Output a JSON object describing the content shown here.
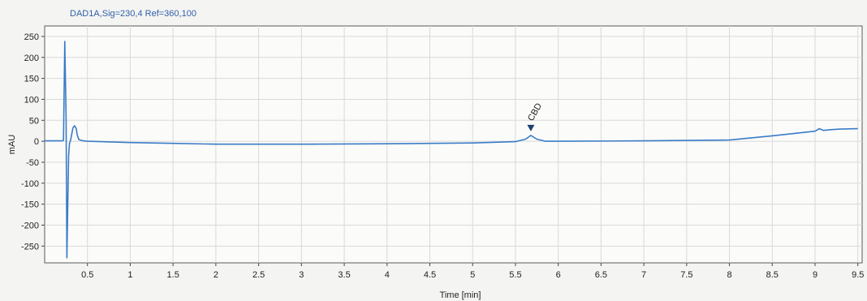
{
  "chart_data": {
    "type": "line",
    "signal_label": "DAD1A,Sig=230,4  Ref=360,100",
    "xlabel": "Time [min]",
    "ylabel": "mAU",
    "xlim": [
      0,
      9.55
    ],
    "ylim": [
      -290,
      275
    ],
    "x_ticks": [
      0.5,
      1,
      1.5,
      2,
      2.5,
      3,
      3.5,
      4,
      4.5,
      5,
      5.5,
      6,
      6.5,
      7,
      7.5,
      8,
      8.5,
      9,
      9.5
    ],
    "y_ticks": [
      -250,
      -200,
      -150,
      -100,
      -50,
      0,
      50,
      100,
      150,
      200,
      250
    ],
    "grid": true,
    "series": [
      {
        "color": "#3a7cc6",
        "x": [
          0,
          0.2,
          0.22,
          0.235,
          0.25,
          0.26,
          0.27,
          0.28,
          0.29,
          0.3,
          0.31,
          0.33,
          0.35,
          0.37,
          0.38,
          0.4,
          0.45,
          0.5,
          1,
          1.5,
          2,
          3,
          4,
          5,
          5.5,
          5.62,
          5.68,
          5.75,
          5.85,
          6,
          7,
          7.5,
          8,
          8.5,
          9,
          9.05,
          9.1,
          9.2,
          9.3,
          9.5
        ],
        "y": [
          1,
          1,
          2,
          238,
          60,
          -278,
          -150,
          -35,
          -5,
          0,
          10,
          32,
          37,
          30,
          15,
          4,
          1,
          0,
          -3,
          -5,
          -7,
          -7,
          -6,
          -4,
          -1,
          5,
          14,
          5,
          0,
          0,
          1,
          2,
          3,
          13,
          24,
          30,
          26,
          28,
          29,
          30
        ]
      }
    ],
    "annotations": [
      {
        "label": "CBD",
        "x": 5.68,
        "y": 14
      }
    ]
  }
}
